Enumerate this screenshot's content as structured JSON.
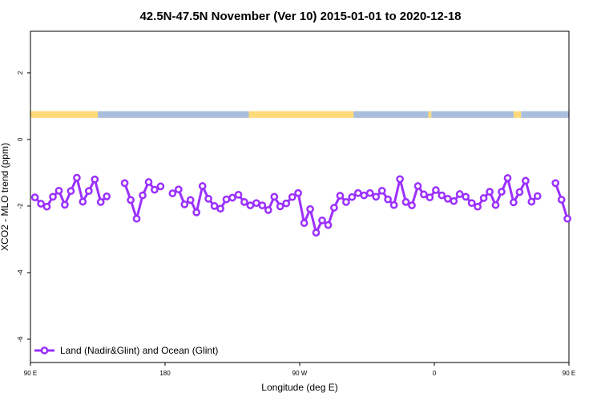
{
  "chart_data": {
    "type": "line",
    "title": "42.5N-47.5N November (Ver 10)   2015-01-01 to 2020-12-18",
    "xlabel": "Longitude (deg E)",
    "ylabel": "XCO2 - MLO trend (ppm)",
    "xlim": [
      90,
      450
    ],
    "ylim": [
      -6.7,
      3.25
    ],
    "x_ticks": [
      {
        "value": 90,
        "label": "90 E"
      },
      {
        "value": 180,
        "label": "180"
      },
      {
        "value": 270,
        "label": "90 W"
      },
      {
        "value": 360,
        "label": "0"
      },
      {
        "value": 450,
        "label": "90 E"
      }
    ],
    "x_ticks_top": [
      {
        "value": 90,
        "label": "90 E"
      },
      {
        "value": 180,
        "label": "180"
      },
      {
        "value": 270,
        "label": "90 W"
      },
      {
        "value": 360,
        "label": "0"
      },
      {
        "value": 450,
        "label": "90 E"
      }
    ],
    "y_ticks": [
      {
        "value": 2,
        "label": "2"
      },
      {
        "value": 0,
        "label": "0"
      },
      {
        "value": -2,
        "label": "-2"
      },
      {
        "value": -4,
        "label": "-4"
      },
      {
        "value": -6,
        "label": "-6"
      }
    ],
    "legend": {
      "position": "bottom-left"
    },
    "land_ocean_strip": {
      "y_range": [
        0.65,
        0.85
      ],
      "land_color": "#FFDA7B",
      "ocean_color": "#A9BFDC",
      "segments": [
        {
          "type": "land",
          "from": 90,
          "to": 135
        },
        {
          "type": "ocean",
          "from": 135,
          "to": 236
        },
        {
          "type": "land",
          "from": 236,
          "to": 306
        },
        {
          "type": "ocean",
          "from": 306,
          "to": 356
        },
        {
          "type": "land",
          "from": 356,
          "to": 358
        },
        {
          "type": "ocean",
          "from": 358,
          "to": 413
        },
        {
          "type": "land",
          "from": 413,
          "to": 418
        },
        {
          "type": "ocean",
          "from": 418,
          "to": 450
        }
      ]
    },
    "series": [
      {
        "name": "Land (Nadir&Glint) and Ocean (Glint)",
        "color": "#9B30FF",
        "segments": [
          [
            [
              93,
              -1.74
            ],
            [
              97,
              -1.93
            ],
            [
              101,
              -2.02
            ],
            [
              105,
              -1.72
            ],
            [
              109,
              -1.54
            ],
            [
              113,
              -1.96
            ],
            [
              117,
              -1.55
            ],
            [
              121,
              -1.15
            ],
            [
              125,
              -1.87
            ],
            [
              129,
              -1.55
            ],
            [
              133,
              -1.2
            ],
            [
              137,
              -1.88
            ],
            [
              141,
              -1.71
            ]
          ],
          [
            [
              153,
              -1.31
            ],
            [
              157,
              -1.82
            ],
            [
              161,
              -2.38
            ],
            [
              165,
              -1.68
            ],
            [
              169,
              -1.28
            ],
            [
              173,
              -1.51
            ],
            [
              177,
              -1.41
            ]
          ],
          [
            [
              185,
              -1.62
            ],
            [
              189,
              -1.5
            ],
            [
              193,
              -1.95
            ],
            [
              197,
              -1.82
            ],
            [
              201,
              -2.19
            ],
            [
              205,
              -1.4
            ],
            [
              209,
              -1.78
            ],
            [
              213,
              -2.0
            ],
            [
              217,
              -2.08
            ],
            [
              221,
              -1.8
            ],
            [
              225,
              -1.75
            ],
            [
              229,
              -1.66
            ],
            [
              233,
              -1.88
            ],
            [
              237,
              -1.98
            ],
            [
              241,
              -1.91
            ],
            [
              245,
              -1.98
            ],
            [
              249,
              -2.12
            ],
            [
              253,
              -1.72
            ],
            [
              257,
              -2.01
            ],
            [
              261,
              -1.92
            ],
            [
              265,
              -1.73
            ],
            [
              269,
              -1.61
            ],
            [
              273,
              -2.51
            ],
            [
              277,
              -2.09
            ],
            [
              281,
              -2.8
            ],
            [
              285,
              -2.43
            ],
            [
              289,
              -2.57
            ],
            [
              293,
              -2.05
            ],
            [
              297,
              -1.69
            ],
            [
              301,
              -1.88
            ],
            [
              305,
              -1.73
            ],
            [
              309,
              -1.61
            ],
            [
              313,
              -1.68
            ],
            [
              317,
              -1.61
            ],
            [
              321,
              -1.72
            ],
            [
              325,
              -1.54
            ],
            [
              329,
              -1.8
            ],
            [
              333,
              -1.97
            ],
            [
              337,
              -1.19
            ],
            [
              341,
              -1.88
            ],
            [
              345,
              -1.98
            ],
            [
              349,
              -1.4
            ],
            [
              353,
              -1.65
            ],
            [
              357,
              -1.74
            ],
            [
              361,
              -1.52
            ],
            [
              365,
              -1.68
            ],
            [
              369,
              -1.78
            ],
            [
              373,
              -1.85
            ],
            [
              377,
              -1.64
            ],
            [
              381,
              -1.72
            ],
            [
              385,
              -1.91
            ],
            [
              389,
              -2.02
            ],
            [
              393,
              -1.76
            ],
            [
              397,
              -1.57
            ],
            [
              401,
              -1.97
            ],
            [
              405,
              -1.57
            ],
            [
              409,
              -1.16
            ],
            [
              413,
              -1.89
            ],
            [
              417,
              -1.58
            ],
            [
              421,
              -1.24
            ],
            [
              425,
              -1.87
            ],
            [
              429,
              -1.7
            ]
          ],
          [
            [
              441,
              -1.31
            ],
            [
              445,
              -1.81
            ],
            [
              449,
              -2.38
            ]
          ]
        ]
      }
    ]
  }
}
